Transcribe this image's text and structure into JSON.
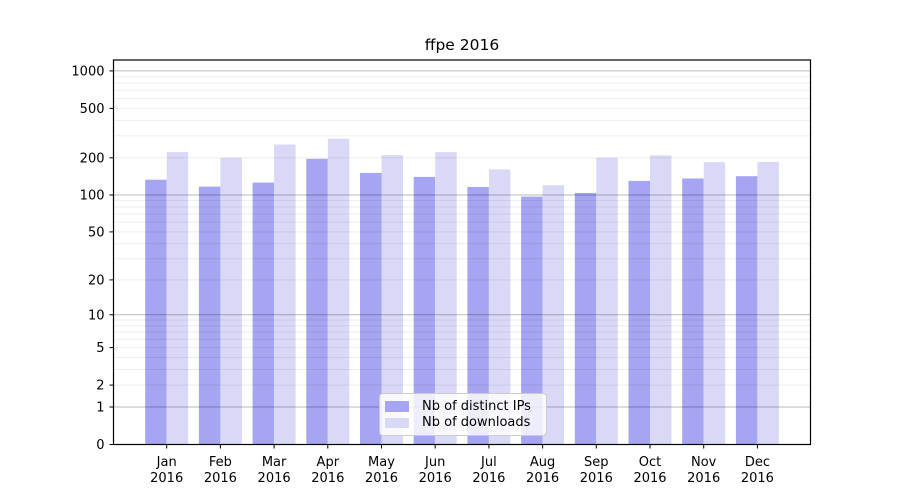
{
  "title": "ffpe 2016",
  "legend": {
    "items": [
      {
        "label": "Nb of distinct IPs",
        "color": "#a5a5f1"
      },
      {
        "label": "Nb of downloads",
        "color": "#d9d9f7"
      }
    ]
  },
  "chart_data": {
    "type": "bar",
    "title": "ffpe 2016",
    "categories": [
      "Jan 2016",
      "Feb 2016",
      "Mar 2016",
      "Apr 2016",
      "May 2016",
      "Jun 2016",
      "Jul 2016",
      "Aug 2016",
      "Sep 2016",
      "Oct 2016",
      "Nov 2016",
      "Dec 2016"
    ],
    "series": [
      {
        "name": "Nb of distinct IPs",
        "color": "#a5a5f1",
        "values": [
          133,
          117,
          126,
          196,
          151,
          140,
          116,
          97,
          104,
          130,
          136,
          142
        ]
      },
      {
        "name": "Nb of downloads",
        "color": "#d9d9f7",
        "values": [
          222,
          200,
          256,
          285,
          210,
          222,
          161,
          120,
          200,
          209,
          184,
          185
        ]
      }
    ],
    "xlabel": "",
    "ylabel": "",
    "yscale": "log1p",
    "yticks": [
      0,
      1,
      2,
      5,
      10,
      20,
      50,
      100,
      200,
      500,
      1000
    ],
    "ylim": [
      0,
      1224
    ],
    "grid": "horizontal-log-minor-and-major",
    "legend_position": "lower center"
  }
}
